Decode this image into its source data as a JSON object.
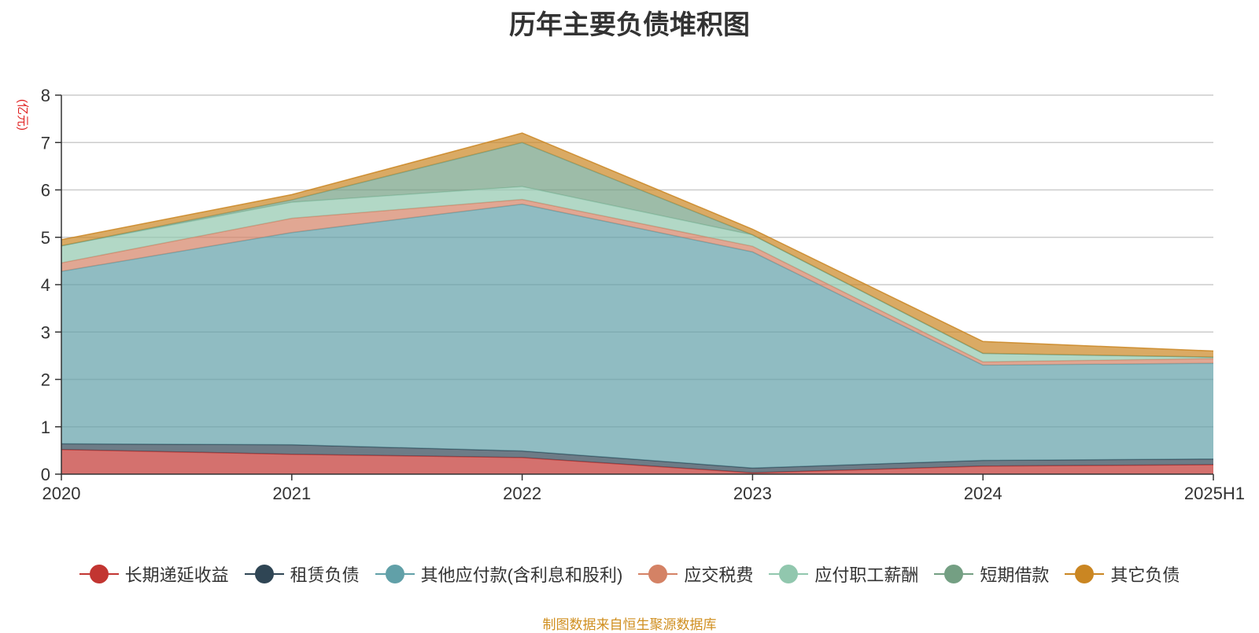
{
  "chart_data": {
    "type": "area",
    "stacked": true,
    "title": "历年主要负债堆积图",
    "ylabel": "(亿元)",
    "xlabel": "",
    "categories": [
      "2020",
      "2021",
      "2022",
      "2023",
      "2024",
      "2025H1"
    ],
    "ylim": [
      0,
      8
    ],
    "yticks": [
      0,
      1,
      2,
      3,
      4,
      5,
      6,
      7,
      8
    ],
    "grid": true,
    "legend_position": "bottom",
    "series": [
      {
        "name": "长期递延收益",
        "color": "#c23531",
        "values": [
          0.52,
          0.42,
          0.35,
          0.03,
          0.17,
          0.2
        ]
      },
      {
        "name": "租赁负债",
        "color": "#2f4554",
        "values": [
          0.12,
          0.2,
          0.14,
          0.1,
          0.12,
          0.12
        ]
      },
      {
        "name": "其他应付款(含利息和股利)",
        "color": "#61a0a8",
        "values": [
          3.64,
          4.48,
          5.21,
          4.56,
          2.01,
          2.02
        ]
      },
      {
        "name": "应交税费",
        "color": "#d48265",
        "values": [
          0.18,
          0.3,
          0.1,
          0.12,
          0.07,
          0.1
        ]
      },
      {
        "name": "应付职工薪酬",
        "color": "#91c7ae",
        "values": [
          0.36,
          0.34,
          0.27,
          0.24,
          0.18,
          0.03
        ]
      },
      {
        "name": "短期借款",
        "color": "#749f83",
        "values": [
          0.0,
          0.05,
          0.93,
          0.0,
          0.0,
          0.0
        ]
      },
      {
        "name": "其它负债",
        "color": "#ca8622",
        "values": [
          0.13,
          0.11,
          0.2,
          0.12,
          0.25,
          0.13
        ]
      }
    ]
  },
  "source_note": "制图数据来自恒生聚源数据库"
}
